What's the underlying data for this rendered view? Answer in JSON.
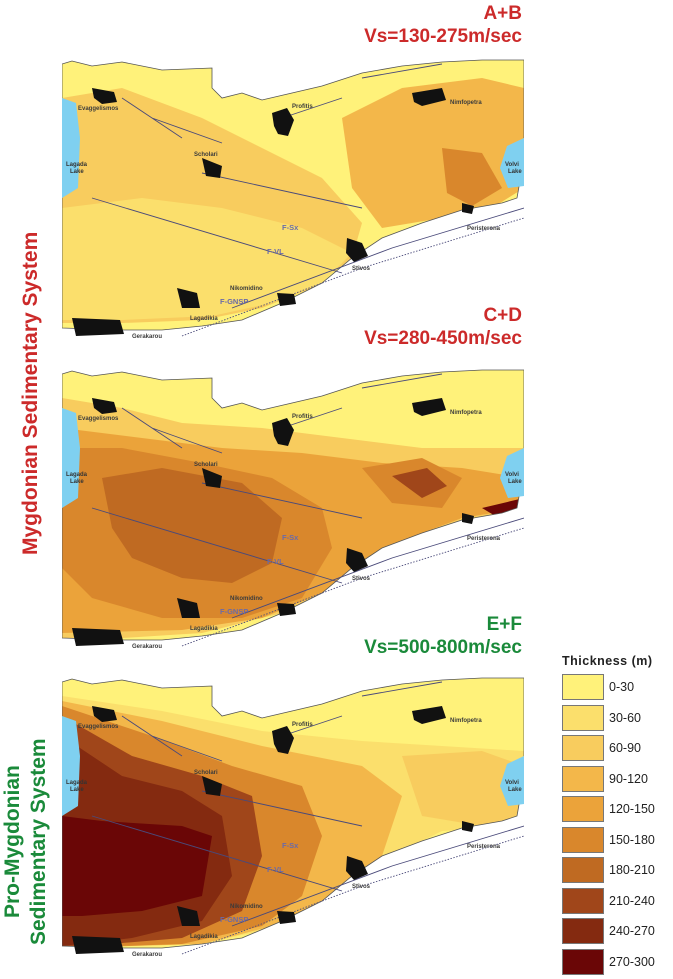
{
  "panels": [
    {
      "title_line1": "A+B",
      "title_line2": "Vs=130-275m/sec",
      "title_color": "#cc2a2a"
    },
    {
      "title_line1": "C+D",
      "title_line2": "Vs=280-450m/sec",
      "title_color": "#cc2a2a"
    },
    {
      "title_line1": "E+F",
      "title_line2": "Vs=500-800m/sec",
      "title_color": "#1a8a3a"
    }
  ],
  "side_labels": {
    "mygdonian": "Mygdonian Sedimentary System",
    "pro_line1": "Pro-Mygdonian",
    "pro_line2": "Sedimentary System",
    "mygdonian_color": "#cc2a2a",
    "pro_color": "#1a8a3a"
  },
  "places": {
    "evaggelismos": "Evaggelismos",
    "profitis": "Profitis",
    "nimfopetra": "Nimfopetra",
    "lagada_line1": "Lagada",
    "lagada_line2": "Lake",
    "scholari": "Scholari",
    "volvi_line1": "Volvi",
    "volvi_line2": "Lake",
    "peristerona": "Peristerona",
    "stivos": "Stivos",
    "nikomidino": "Nikomidino",
    "lagadikia": "Lagadikia",
    "gerakarou": "Gerakarou"
  },
  "faults": {
    "fsx": "F-Sx",
    "fvl": "F-VL",
    "fgnsp": "F-GNSP"
  },
  "legend": {
    "title": "Thickness (m)",
    "classes": [
      {
        "label": "0-30",
        "color": "#fff27a"
      },
      {
        "label": "30-60",
        "color": "#fbdf6c"
      },
      {
        "label": "60-90",
        "color": "#f8cc5e"
      },
      {
        "label": "90-120",
        "color": "#f3b74a"
      },
      {
        "label": "120-150",
        "color": "#eba33a"
      },
      {
        "label": "150-180",
        "color": "#d9872c"
      },
      {
        "label": "180-210",
        "color": "#bf6a22"
      },
      {
        "label": "210-240",
        "color": "#a0461a"
      },
      {
        "label": "240-270",
        "color": "#842a10"
      },
      {
        "label": "270-300",
        "color": "#6a0606"
      }
    ]
  },
  "colors": {
    "lake": "#7fd0f0",
    "base_fill": "#fff27a"
  }
}
